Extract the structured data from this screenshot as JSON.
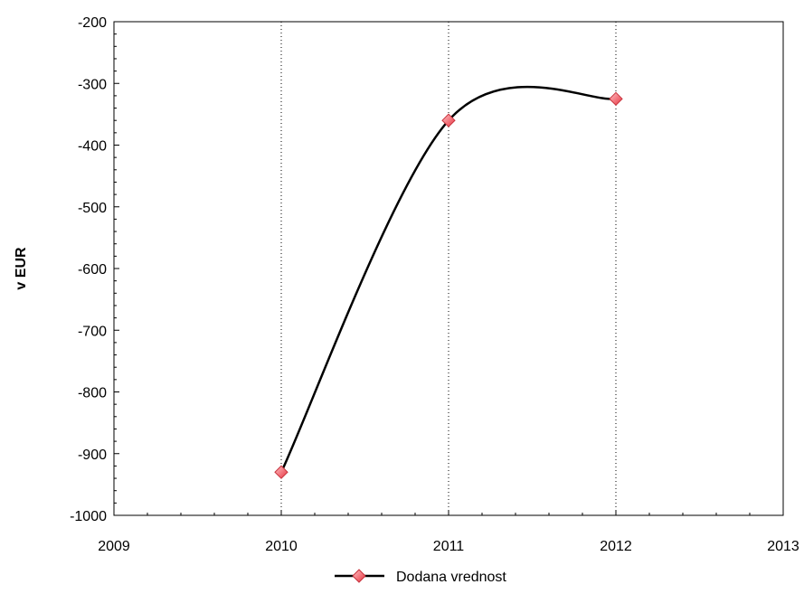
{
  "chart_data": {
    "type": "line",
    "ylabel": "v EUR",
    "xlim": [
      2009,
      2013
    ],
    "ylim": [
      -1000,
      -200
    ],
    "xticks": [
      2009,
      2010,
      2011,
      2012,
      2013
    ],
    "yticks": [
      -1000,
      -900,
      -800,
      -700,
      -600,
      -500,
      -400,
      -300,
      -200
    ],
    "vertical_gridlines_at": [
      2010,
      2011,
      2012
    ],
    "grid": "vertical dotted",
    "legend_position": "bottom-center",
    "series": [
      {
        "name": "Dodana vrednost",
        "x": [
          2010,
          2011,
          2012
        ],
        "values": [
          -930,
          -360,
          -325
        ],
        "line_color": "#000000",
        "marker": "diamond",
        "marker_color": "#f05a64",
        "smooth": true
      }
    ]
  }
}
